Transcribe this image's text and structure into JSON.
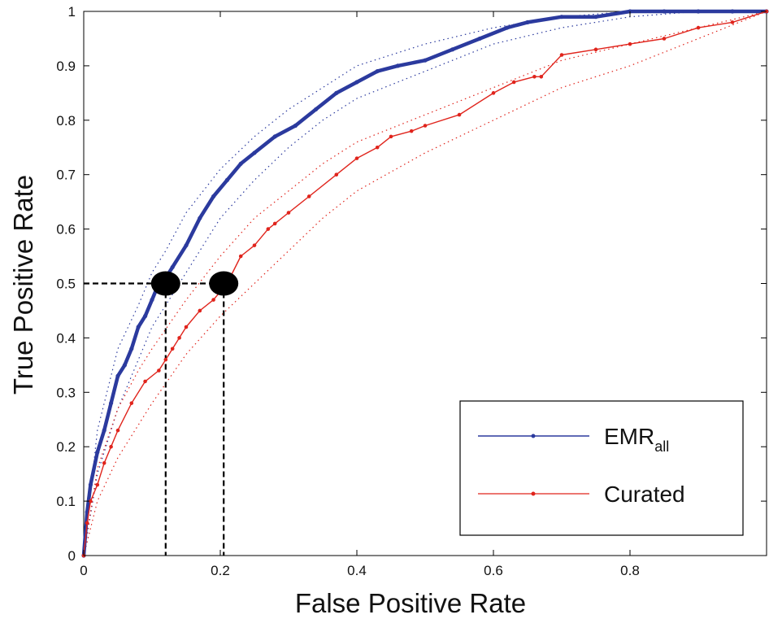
{
  "chart_data": {
    "type": "line",
    "xlabel": "False Positive Rate",
    "ylabel": "True Positive Rate",
    "xlim": [
      0,
      1
    ],
    "ylim": [
      0,
      1
    ],
    "xticks": [
      "0",
      "0.2",
      "0.4",
      "0.6",
      "0.8"
    ],
    "yticks": [
      "0",
      "0.1",
      "0.2",
      "0.3",
      "0.4",
      "0.5",
      "0.6",
      "0.7",
      "0.8",
      "0.9",
      "1"
    ],
    "grid": false,
    "legend_position": "bottom-right",
    "series": [
      {
        "name": "EMR",
        "name_subscript": "all",
        "color": "#2b3a9e",
        "x": [
          0,
          0.005,
          0.01,
          0.02,
          0.03,
          0.04,
          0.05,
          0.06,
          0.07,
          0.08,
          0.09,
          0.1,
          0.11,
          0.12,
          0.13,
          0.15,
          0.17,
          0.19,
          0.21,
          0.23,
          0.25,
          0.28,
          0.31,
          0.34,
          0.37,
          0.4,
          0.43,
          0.46,
          0.5,
          0.54,
          0.58,
          0.62,
          0.65,
          0.7,
          0.75,
          0.8,
          0.85,
          0.9,
          0.95,
          1.0
        ],
        "y": [
          0,
          0.08,
          0.13,
          0.19,
          0.23,
          0.28,
          0.33,
          0.35,
          0.38,
          0.42,
          0.44,
          0.47,
          0.5,
          0.51,
          0.53,
          0.57,
          0.62,
          0.66,
          0.69,
          0.72,
          0.74,
          0.77,
          0.79,
          0.82,
          0.85,
          0.87,
          0.89,
          0.9,
          0.91,
          0.93,
          0.95,
          0.97,
          0.98,
          0.99,
          0.99,
          1.0,
          1.0,
          1.0,
          1.0,
          1.0
        ]
      },
      {
        "name": "Curated",
        "color": "#e0241c",
        "x": [
          0,
          0.005,
          0.01,
          0.02,
          0.03,
          0.04,
          0.05,
          0.07,
          0.09,
          0.11,
          0.12,
          0.13,
          0.14,
          0.15,
          0.17,
          0.19,
          0.21,
          0.23,
          0.25,
          0.27,
          0.28,
          0.3,
          0.33,
          0.37,
          0.4,
          0.43,
          0.45,
          0.48,
          0.5,
          0.55,
          0.6,
          0.63,
          0.66,
          0.67,
          0.7,
          0.75,
          0.8,
          0.85,
          0.9,
          0.95,
          1.0
        ],
        "y": [
          0,
          0.06,
          0.1,
          0.13,
          0.17,
          0.2,
          0.23,
          0.28,
          0.32,
          0.34,
          0.36,
          0.38,
          0.4,
          0.42,
          0.45,
          0.47,
          0.5,
          0.55,
          0.57,
          0.6,
          0.61,
          0.63,
          0.66,
          0.7,
          0.73,
          0.75,
          0.77,
          0.78,
          0.79,
          0.81,
          0.85,
          0.87,
          0.88,
          0.88,
          0.92,
          0.93,
          0.94,
          0.95,
          0.97,
          0.98,
          1.0
        ]
      }
    ],
    "confidence_bands": [
      {
        "series": "EMR",
        "color": "#2b3a9e",
        "x": [
          0,
          0.02,
          0.05,
          0.08,
          0.1,
          0.12,
          0.15,
          0.2,
          0.25,
          0.3,
          0.35,
          0.4,
          0.5,
          0.6,
          0.7,
          0.8,
          0.9,
          1.0
        ],
        "upper": [
          0,
          0.23,
          0.38,
          0.46,
          0.52,
          0.56,
          0.63,
          0.71,
          0.77,
          0.82,
          0.86,
          0.9,
          0.94,
          0.97,
          0.99,
          1.0,
          1.0,
          1.0
        ],
        "lower": [
          0,
          0.15,
          0.27,
          0.36,
          0.42,
          0.46,
          0.52,
          0.62,
          0.69,
          0.75,
          0.8,
          0.84,
          0.89,
          0.94,
          0.97,
          0.99,
          1.0,
          1.0
        ]
      },
      {
        "series": "Curated",
        "color": "#e0241c",
        "x": [
          0,
          0.02,
          0.05,
          0.08,
          0.1,
          0.15,
          0.2,
          0.25,
          0.3,
          0.35,
          0.4,
          0.5,
          0.6,
          0.7,
          0.8,
          0.9,
          1.0
        ],
        "upper": [
          0,
          0.16,
          0.27,
          0.34,
          0.38,
          0.47,
          0.55,
          0.62,
          0.67,
          0.72,
          0.76,
          0.81,
          0.86,
          0.91,
          0.94,
          0.97,
          1.0
        ],
        "lower": [
          0,
          0.1,
          0.18,
          0.24,
          0.28,
          0.37,
          0.44,
          0.5,
          0.56,
          0.62,
          0.67,
          0.74,
          0.8,
          0.86,
          0.9,
          0.95,
          1.0
        ]
      }
    ],
    "annotations": [
      {
        "type": "marker",
        "x": 0.12,
        "y": 0.5
      },
      {
        "type": "marker",
        "x": 0.205,
        "y": 0.5
      },
      {
        "type": "guide",
        "points": [
          [
            0,
            0.5
          ],
          [
            0.205,
            0.5
          ]
        ]
      },
      {
        "type": "guide",
        "points": [
          [
            0.12,
            0.5
          ],
          [
            0.12,
            0
          ]
        ]
      },
      {
        "type": "guide",
        "points": [
          [
            0.205,
            0.5
          ],
          [
            0.205,
            0
          ]
        ]
      }
    ]
  }
}
